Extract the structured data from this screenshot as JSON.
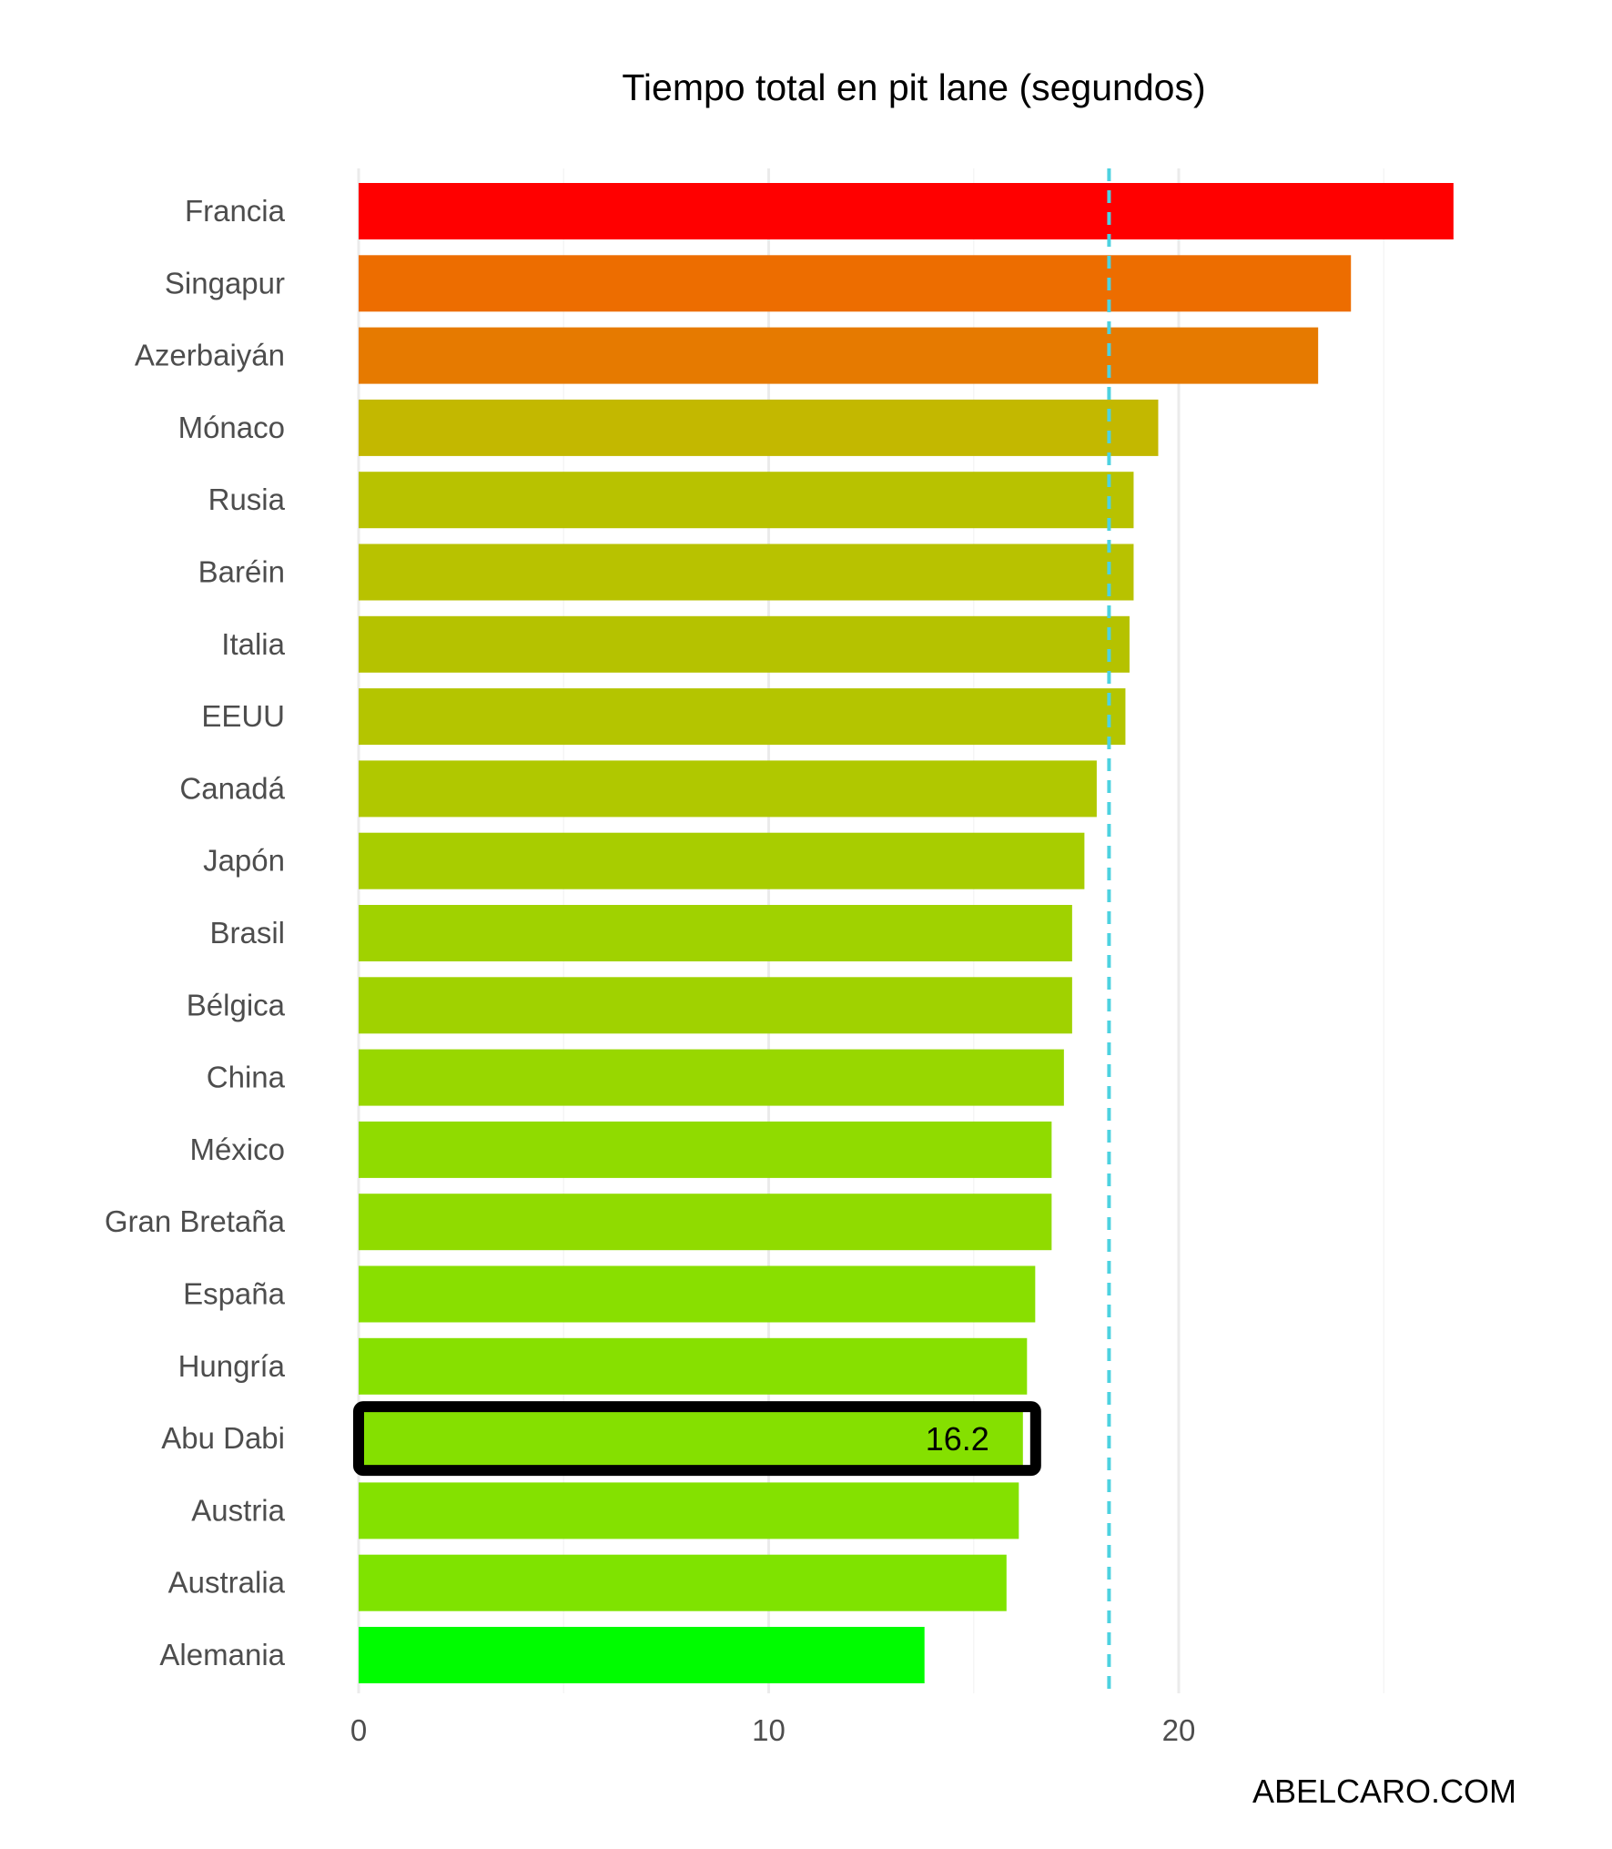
{
  "chart_data": {
    "type": "bar",
    "orientation": "horizontal",
    "title": "Tiempo total en pit lane (segundos)",
    "categories": [
      "Francia",
      "Singapur",
      "Azerbaiyán",
      "Mónaco",
      "Rusia",
      "Baréin",
      "Italia",
      "EEUU",
      "Canadá",
      "Japón",
      "Brasil",
      "Bélgica",
      "China",
      "México",
      "Gran Bretaña",
      "España",
      "Hungría",
      "Abu Dabi",
      "Austria",
      "Australia",
      "Alemania"
    ],
    "values": [
      26.7,
      24.2,
      23.4,
      19.5,
      18.9,
      18.9,
      18.8,
      18.7,
      18.0,
      17.7,
      17.4,
      17.4,
      17.2,
      16.9,
      16.9,
      16.5,
      16.3,
      16.2,
      16.1,
      15.8,
      13.8
    ],
    "colors": [
      "#ff0000",
      "#ed6d00",
      "#e67a00",
      "#c3b800",
      "#b8c200",
      "#b8c200",
      "#b5c200",
      "#b4c500",
      "#b0c800",
      "#a8cd00",
      "#a0d200",
      "#a0d200",
      "#98d700",
      "#90db00",
      "#90db00",
      "#89df00",
      "#87e000",
      "#85e000",
      "#84e100",
      "#7fe300",
      "#00fc00"
    ],
    "xlim": [
      0,
      28.5
    ],
    "xticks": [
      0,
      10,
      20
    ],
    "reference_line": {
      "value": 18.3,
      "style": "dashed",
      "color": "#4dd2e0"
    },
    "highlight": {
      "category": "Abu Dabi",
      "label": "16.2"
    },
    "grid": "vertical major",
    "credit": "ABELCARO.COM"
  }
}
